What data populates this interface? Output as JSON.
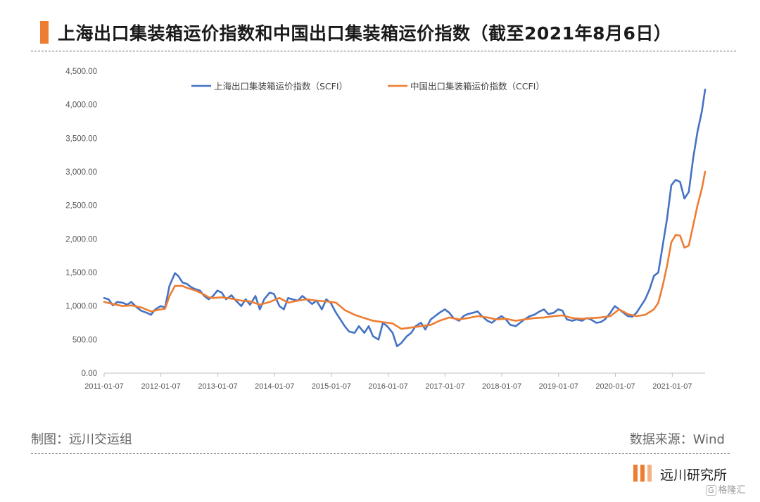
{
  "header": {
    "title": "上海出口集装箱运价指数和中国出口集装箱运价指数（截至2021年8月6日）",
    "accent_color": "#ee7d31"
  },
  "footer": {
    "made_by": "制图：远川交运组",
    "source": "数据来源：Wind",
    "logo_text": "远川研究所",
    "watermark": "格隆汇",
    "watermark_icon": "G"
  },
  "chart_data": {
    "type": "line",
    "title": "",
    "xlabel": "",
    "ylabel": "",
    "ylim": [
      0,
      4500
    ],
    "yticks": [
      0,
      500,
      1000,
      1500,
      2000,
      2500,
      3000,
      3500,
      4000,
      4500
    ],
    "ytick_labels": [
      "0.00",
      "500.00",
      "1,000.00",
      "1,500.00",
      "2,000.00",
      "2,500.00",
      "3,000.00",
      "3,500.00",
      "4,000.00",
      "4,500.00"
    ],
    "xlim": [
      "2011-01-07",
      "2021-08-06"
    ],
    "xticks": [
      "2011-01-07",
      "2012-01-07",
      "2013-01-07",
      "2014-01-07",
      "2015-01-07",
      "2016-01-07",
      "2017-01-07",
      "2018-01-07",
      "2019-01-07",
      "2020-01-07",
      "2021-01-07"
    ],
    "grid": false,
    "legend_position": "top-center",
    "series": [
      {
        "name": "上海出口集装箱运价指数（SCFI）",
        "color": "#4472c4",
        "points": [
          [
            "2011-01-07",
            1120
          ],
          [
            "2011-02-04",
            1100
          ],
          [
            "2011-03-04",
            1010
          ],
          [
            "2011-04-01",
            1060
          ],
          [
            "2011-05-06",
            1050
          ],
          [
            "2011-06-03",
            1020
          ],
          [
            "2011-07-01",
            1060
          ],
          [
            "2011-08-05",
            980
          ],
          [
            "2011-09-02",
            930
          ],
          [
            "2011-10-07",
            900
          ],
          [
            "2011-11-04",
            870
          ],
          [
            "2011-12-02",
            950
          ],
          [
            "2012-01-06",
            1000
          ],
          [
            "2012-02-03",
            980
          ],
          [
            "2012-03-02",
            1300
          ],
          [
            "2012-04-06",
            1490
          ],
          [
            "2012-04-27",
            1450
          ],
          [
            "2012-05-25",
            1350
          ],
          [
            "2012-06-22",
            1330
          ],
          [
            "2012-07-20",
            1280
          ],
          [
            "2012-08-17",
            1250
          ],
          [
            "2012-09-14",
            1230
          ],
          [
            "2012-10-12",
            1150
          ],
          [
            "2012-11-09",
            1100
          ],
          [
            "2012-12-07",
            1150
          ],
          [
            "2013-01-04",
            1230
          ],
          [
            "2013-02-01",
            1200
          ],
          [
            "2013-03-01",
            1100
          ],
          [
            "2013-04-05",
            1160
          ],
          [
            "2013-05-03",
            1080
          ],
          [
            "2013-06-07",
            1000
          ],
          [
            "2013-07-05",
            1100
          ],
          [
            "2013-08-02",
            1020
          ],
          [
            "2013-09-06",
            1150
          ],
          [
            "2013-10-04",
            950
          ],
          [
            "2013-11-01",
            1100
          ],
          [
            "2013-12-06",
            1200
          ],
          [
            "2014-01-03",
            1180
          ],
          [
            "2014-02-07",
            1000
          ],
          [
            "2014-03-07",
            950
          ],
          [
            "2014-04-04",
            1120
          ],
          [
            "2014-05-02",
            1100
          ],
          [
            "2014-06-06",
            1080
          ],
          [
            "2014-07-04",
            1150
          ],
          [
            "2014-08-01",
            1100
          ],
          [
            "2014-09-05",
            1030
          ],
          [
            "2014-10-03",
            1080
          ],
          [
            "2014-11-07",
            950
          ],
          [
            "2014-12-05",
            1100
          ],
          [
            "2015-01-02",
            1050
          ],
          [
            "2015-02-06",
            900
          ],
          [
            "2015-03-06",
            800
          ],
          [
            "2015-04-03",
            700
          ],
          [
            "2015-05-01",
            620
          ],
          [
            "2015-06-05",
            600
          ],
          [
            "2015-07-03",
            700
          ],
          [
            "2015-08-07",
            600
          ],
          [
            "2015-09-04",
            700
          ],
          [
            "2015-10-02",
            550
          ],
          [
            "2015-11-06",
            500
          ],
          [
            "2015-12-04",
            750
          ],
          [
            "2016-01-01",
            700
          ],
          [
            "2016-02-05",
            600
          ],
          [
            "2016-03-04",
            400
          ],
          [
            "2016-04-01",
            450
          ],
          [
            "2016-05-06",
            550
          ],
          [
            "2016-06-03",
            600
          ],
          [
            "2016-07-01",
            700
          ],
          [
            "2016-08-05",
            750
          ],
          [
            "2016-09-02",
            650
          ],
          [
            "2016-10-07",
            800
          ],
          [
            "2016-11-04",
            850
          ],
          [
            "2016-12-02",
            900
          ],
          [
            "2017-01-06",
            950
          ],
          [
            "2017-02-03",
            900
          ],
          [
            "2017-03-03",
            820
          ],
          [
            "2017-04-07",
            780
          ],
          [
            "2017-05-05",
            850
          ],
          [
            "2017-06-02",
            880
          ],
          [
            "2017-07-07",
            900
          ],
          [
            "2017-08-04",
            920
          ],
          [
            "2017-09-01",
            850
          ],
          [
            "2017-10-06",
            780
          ],
          [
            "2017-11-03",
            750
          ],
          [
            "2017-12-01",
            800
          ],
          [
            "2018-01-05",
            850
          ],
          [
            "2018-02-02",
            800
          ],
          [
            "2018-03-02",
            720
          ],
          [
            "2018-04-06",
            700
          ],
          [
            "2018-05-04",
            750
          ],
          [
            "2018-06-01",
            800
          ],
          [
            "2018-07-06",
            850
          ],
          [
            "2018-08-03",
            870
          ],
          [
            "2018-09-07",
            920
          ],
          [
            "2018-10-05",
            950
          ],
          [
            "2018-11-02",
            880
          ],
          [
            "2018-12-07",
            900
          ],
          [
            "2019-01-04",
            950
          ],
          [
            "2019-02-01",
            930
          ],
          [
            "2019-03-01",
            800
          ],
          [
            "2019-04-05",
            780
          ],
          [
            "2019-05-03",
            800
          ],
          [
            "2019-06-07",
            780
          ],
          [
            "2019-07-05",
            820
          ],
          [
            "2019-08-02",
            800
          ],
          [
            "2019-09-06",
            750
          ],
          [
            "2019-10-04",
            760
          ],
          [
            "2019-11-01",
            800
          ],
          [
            "2019-12-06",
            900
          ],
          [
            "2020-01-03",
            1000
          ],
          [
            "2020-01-31",
            950
          ],
          [
            "2020-02-28",
            900
          ],
          [
            "2020-03-27",
            850
          ],
          [
            "2020-04-24",
            840
          ],
          [
            "2020-05-22",
            900
          ],
          [
            "2020-06-19",
            1000
          ],
          [
            "2020-07-17",
            1100
          ],
          [
            "2020-08-14",
            1250
          ],
          [
            "2020-09-11",
            1450
          ],
          [
            "2020-10-09",
            1500
          ],
          [
            "2020-11-06",
            1900
          ],
          [
            "2020-12-04",
            2300
          ],
          [
            "2021-01-01",
            2800
          ],
          [
            "2021-01-29",
            2880
          ],
          [
            "2021-02-26",
            2850
          ],
          [
            "2021-03-26",
            2600
          ],
          [
            "2021-04-23",
            2700
          ],
          [
            "2021-05-21",
            3200
          ],
          [
            "2021-06-18",
            3600
          ],
          [
            "2021-07-16",
            3900
          ],
          [
            "2021-08-06",
            4225
          ]
        ]
      },
      {
        "name": "中国出口集装箱运价指数（CCFI）",
        "color": "#ee7d31",
        "points": [
          [
            "2011-01-07",
            1060
          ],
          [
            "2011-03-04",
            1030
          ],
          [
            "2011-05-06",
            1000
          ],
          [
            "2011-07-01",
            1010
          ],
          [
            "2011-09-02",
            980
          ],
          [
            "2011-11-04",
            920
          ],
          [
            "2012-01-06",
            950
          ],
          [
            "2012-02-03",
            960
          ],
          [
            "2012-03-02",
            1150
          ],
          [
            "2012-04-06",
            1300
          ],
          [
            "2012-05-25",
            1300
          ],
          [
            "2012-06-22",
            1270
          ],
          [
            "2012-07-20",
            1250
          ],
          [
            "2012-08-17",
            1230
          ],
          [
            "2012-09-14",
            1200
          ],
          [
            "2012-10-12",
            1170
          ],
          [
            "2012-11-09",
            1130
          ],
          [
            "2012-12-07",
            1120
          ],
          [
            "2013-02-01",
            1130
          ],
          [
            "2013-04-05",
            1110
          ],
          [
            "2013-06-07",
            1080
          ],
          [
            "2013-08-02",
            1070
          ],
          [
            "2013-10-04",
            1020
          ],
          [
            "2013-12-06",
            1060
          ],
          [
            "2014-02-07",
            1120
          ],
          [
            "2014-04-04",
            1050
          ],
          [
            "2014-06-06",
            1080
          ],
          [
            "2014-08-01",
            1100
          ],
          [
            "2014-10-03",
            1080
          ],
          [
            "2014-12-05",
            1070
          ],
          [
            "2015-02-06",
            1050
          ],
          [
            "2015-04-03",
            940
          ],
          [
            "2015-06-05",
            870
          ],
          [
            "2015-08-07",
            820
          ],
          [
            "2015-10-02",
            780
          ],
          [
            "2015-12-04",
            760
          ],
          [
            "2016-02-05",
            740
          ],
          [
            "2016-04-01",
            660
          ],
          [
            "2016-06-03",
            680
          ],
          [
            "2016-08-05",
            700
          ],
          [
            "2016-10-07",
            720
          ],
          [
            "2016-12-02",
            780
          ],
          [
            "2017-02-03",
            830
          ],
          [
            "2017-04-07",
            800
          ],
          [
            "2017-06-02",
            820
          ],
          [
            "2017-08-04",
            850
          ],
          [
            "2017-10-06",
            830
          ],
          [
            "2017-12-01",
            800
          ],
          [
            "2018-02-02",
            810
          ],
          [
            "2018-04-06",
            780
          ],
          [
            "2018-06-01",
            800
          ],
          [
            "2018-08-03",
            820
          ],
          [
            "2018-10-05",
            830
          ],
          [
            "2018-12-07",
            850
          ],
          [
            "2019-02-01",
            860
          ],
          [
            "2019-04-05",
            820
          ],
          [
            "2019-06-07",
            810
          ],
          [
            "2019-08-02",
            820
          ],
          [
            "2019-10-04",
            830
          ],
          [
            "2019-12-06",
            850
          ],
          [
            "2020-01-31",
            950
          ],
          [
            "2020-03-27",
            880
          ],
          [
            "2020-05-22",
            850
          ],
          [
            "2020-07-17",
            870
          ],
          [
            "2020-09-11",
            950
          ],
          [
            "2020-10-09",
            1050
          ],
          [
            "2020-11-06",
            1300
          ],
          [
            "2020-12-04",
            1600
          ],
          [
            "2021-01-01",
            1950
          ],
          [
            "2021-01-29",
            2060
          ],
          [
            "2021-02-26",
            2050
          ],
          [
            "2021-03-26",
            1870
          ],
          [
            "2021-04-23",
            1900
          ],
          [
            "2021-05-21",
            2200
          ],
          [
            "2021-06-18",
            2500
          ],
          [
            "2021-07-16",
            2750
          ],
          [
            "2021-08-06",
            3000
          ]
        ]
      }
    ]
  }
}
